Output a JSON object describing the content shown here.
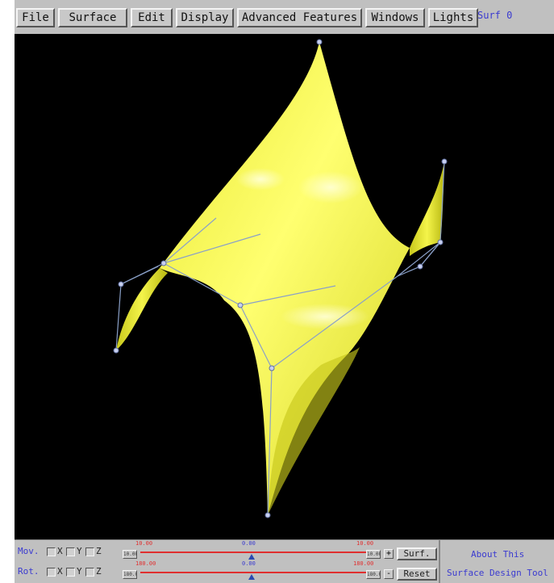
{
  "menubar": {
    "items": [
      "File",
      "Surface",
      "Edit",
      "Display",
      "Advanced Features",
      "Windows",
      "Lights"
    ],
    "status": "Surf 0"
  },
  "viewport": {
    "background": "#000000",
    "surface_color": "#f2f23a",
    "control_net_color": "#8aa0c8"
  },
  "controls": {
    "move": {
      "label": "Mov.",
      "axes": [
        "X",
        "Y",
        "Z"
      ],
      "left_box": "10.00",
      "min": "10.00",
      "mid": "0.00",
      "max": "10.00",
      "right_box": "10.00",
      "step": "+",
      "action": "Surf."
    },
    "rotate": {
      "label": "Rot.",
      "axes": [
        "X",
        "Y",
        "Z"
      ],
      "left_box": "180.00",
      "min": "180.00",
      "mid": "0.00",
      "max": "180.00",
      "right_box": "180.00",
      "step": "-",
      "action": "Reset"
    }
  },
  "about": {
    "title": "About This",
    "subtitle": "Surface Design Tool"
  }
}
